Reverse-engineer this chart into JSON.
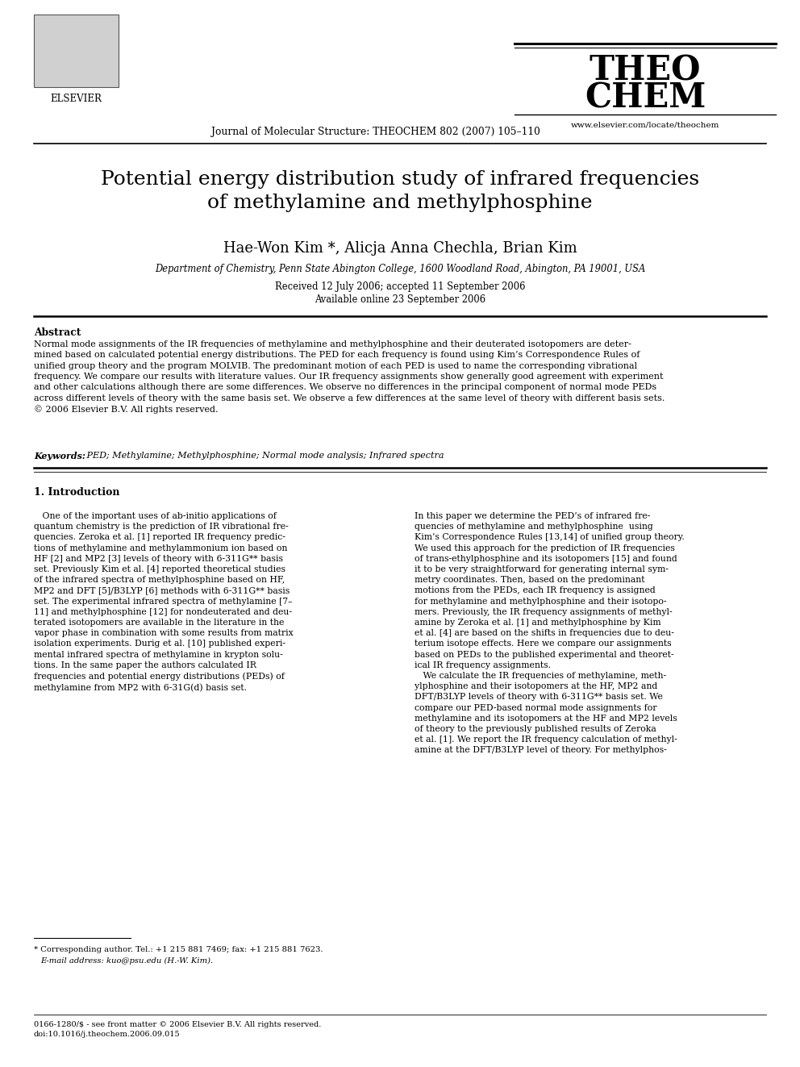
{
  "background_color": "#ffffff",
  "page_width": 9.92,
  "page_height": 13.23,
  "dpi": 100,
  "header": {
    "journal_text": "Journal of Molecular Structure: THEOCHEM 802 (2007) 105–110",
    "elsevier_text": "ELSEVIER",
    "theochem_line1": "THEO",
    "theochem_line2": "CHEM",
    "website": "www.elsevier.com/locate/theochem"
  },
  "title": "Potential energy distribution study of infrared frequencies\nof methylamine and methylphosphine",
  "authors": "Hae-Won Kim *, Alicja Anna Chechla, Brian Kim",
  "affiliation": "Department of Chemistry, Penn State Abington College, 1600 Woodland Road, Abington, PA 19001, USA",
  "dates_line1": "Received 12 July 2006; accepted 11 September 2006",
  "dates_line2": "Available online 23 September 2006",
  "abstract_heading": "Abstract",
  "abstract_text": "Normal mode assignments of the IR frequencies of methylamine and methylphosphine and their deuterated isotopomers are deter-\nmined based on calculated potential energy distributions. The PED for each frequency is found using Kim’s Correspondence Rules of\nunified group theory and the program MOLVIB. The predominant motion of each PED is used to name the corresponding vibrational\nfrequency. We compare our results with literature values. Our IR frequency assignments show generally good agreement with experiment\nand other calculations although there are some differences. We observe no differences in the principal component of normal mode PEDs\nacross different levels of theory with the same basis set. We observe a few differences at the same level of theory with different basis sets.\n© 2006 Elsevier B.V. All rights reserved.",
  "keywords_label": "Keywords:",
  "keywords_text": " PED; Methylamine; Methylphosphine; Normal mode analysis; Infrared spectra",
  "section1_heading": "1. Introduction",
  "col1_text": "   One of the important uses of ab-initio applications of\nquantum chemistry is the prediction of IR vibrational fre-\nquencies. Zeroka et al. [1] reported IR frequency predic-\ntions of methylamine and methylammonium ion based on\nHF [2] and MP2 [3] levels of theory with 6-311G** basis\nset. Previously Kim et al. [4] reported theoretical studies\nof the infrared spectra of methylphosphine based on HF,\nMP2 and DFT [5]/B3LYP [6] methods with 6-311G** basis\nset. The experimental infrared spectra of methylamine [7–\n11] and methylphosphine [12] for nondeuterated and deu-\nterated isotopomers are available in the literature in the\nvapor phase in combination with some results from matrix\nisolation experiments. Durig et al. [10] published experi-\nmental infrared spectra of methylamine in krypton solu-\ntions. In the same paper the authors calculated IR\nfrequencies and potential energy distributions (PEDs) of\nmethylamine from MP2 with 6-31G(d) basis set.",
  "col2_text": "In this paper we determine the PED’s of infrared fre-\nquencies of methylamine and methylphosphine  using\nKim’s Correspondence Rules [13,14] of unified group theory.\nWe used this approach for the prediction of IR frequencies\nof trans-ethylphosphine and its isotopomers [15] and found\nit to be very straightforward for generating internal sym-\nmetry coordinates. Then, based on the predominant\nmotions from the PEDs, each IR frequency is assigned\nfor methylamine and methylphosphine and their isotopo-\nmers. Previously, the IR frequency assignments of methyl-\namine by Zeroka et al. [1] and methylphosphine by Kim\net al. [4] are based on the shifts in frequencies due to deu-\nterium isotope effects. Here we compare our assignments\nbased on PEDs to the published experimental and theoret-\nical IR frequency assignments.\n   We calculate the IR frequencies of methylamine, meth-\nylphosphine and their isotopomers at the HF, MP2 and\nDFT/B3LYP levels of theory with 6-311G** basis set. We\ncompare our PED-based normal mode assignments for\nmethylamine and its isotopomers at the HF and MP2 levels\nof theory to the previously published results of Zeroka\net al. [1]. We report the IR frequency calculation of methyl-\namine at the DFT/B3LYP level of theory. For methylphos-",
  "footnote_star": "* Corresponding author. Tel.: +1 215 881 7469; fax: +1 215 881 7623.",
  "footnote_email": "E-mail address: kuo@psu.edu (H.-W. Kim).",
  "footer_left": "0166-1280/$ - see front matter © 2006 Elsevier B.V. All rights reserved.\ndoi:10.1016/j.theochem.2006.09.015"
}
